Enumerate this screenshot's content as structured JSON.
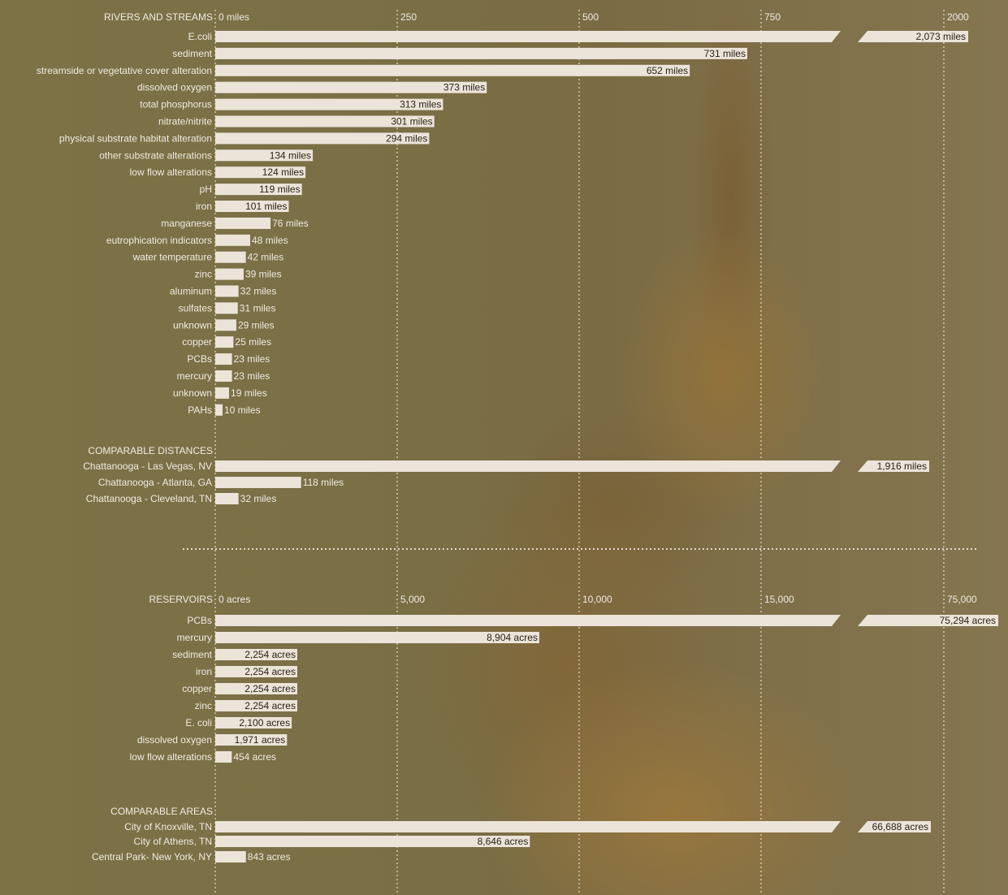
{
  "chart_data": [
    {
      "type": "bar",
      "title": "RIVERS AND STREAMS",
      "unit": "miles",
      "axis_ticks": [
        "0 miles",
        "250",
        "500",
        "750",
        "2000"
      ],
      "xlim": [
        0,
        2000
      ],
      "axis_break": [
        750,
        2000
      ],
      "categories": [
        "E.coli",
        "sediment",
        "streamside or vegetative cover alteration",
        "dissolved oxygen",
        "total phosphorus",
        "nitrate/nitrite",
        "physical substrate habitat alteration",
        "other substrate alterations",
        "low flow alterations",
        "pH",
        "iron",
        "manganese",
        "eutrophication indicators",
        "water temperature",
        "zinc",
        "aluminum",
        "sulfates",
        "unknown",
        "copper",
        "PCBs",
        "mercury",
        "unknown",
        "PAHs"
      ],
      "values": [
        2073,
        731,
        652,
        373,
        313,
        301,
        294,
        134,
        124,
        119,
        101,
        76,
        48,
        42,
        39,
        32,
        31,
        29,
        25,
        23,
        23,
        19,
        10
      ],
      "labels": [
        "2,073 miles",
        "731 miles",
        "652 miles",
        "373 miles",
        "313 miles",
        "301 miles",
        "294 miles",
        "134 miles",
        "124 miles",
        "119 miles",
        "101 miles",
        "76 miles",
        "48 miles",
        "42 miles",
        "39 miles",
        "32 miles",
        "31 miles",
        "29 miles",
        "25 miles",
        "23 miles",
        "23 miles",
        "19 miles",
        "10 miles"
      ]
    },
    {
      "type": "bar",
      "title": "COMPARABLE DISTANCES",
      "unit": "miles",
      "categories": [
        "Chattanooga - Las Vegas, NV",
        "Chattanooga - Atlanta, GA",
        "Chattanooga - Cleveland, TN"
      ],
      "values": [
        1916,
        118,
        32
      ],
      "labels": [
        "1,916 miles",
        "118 miles",
        "32 miles"
      ]
    },
    {
      "type": "bar",
      "title": "RESERVOIRS",
      "unit": "acres",
      "axis_ticks": [
        "0 acres",
        "5,000",
        "10,000",
        "15,000",
        "75,000"
      ],
      "xlim": [
        0,
        75000
      ],
      "axis_break": [
        15000,
        75000
      ],
      "categories": [
        "PCBs",
        "mercury",
        "sediment",
        "iron",
        "copper",
        "zinc",
        "E. coli",
        "dissolved oxygen",
        "low flow alterations"
      ],
      "values": [
        75294,
        8904,
        2254,
        2254,
        2254,
        2254,
        2100,
        1971,
        454
      ],
      "labels": [
        "75,294 acres",
        "8,904 acres",
        "2,254 acres",
        "2,254 acres",
        "2,254 acres",
        "2,254 acres",
        "2,100 acres",
        "1,971 acres",
        "454 acres"
      ]
    },
    {
      "type": "bar",
      "title": "COMPARABLE AREAS",
      "unit": "acres",
      "categories": [
        "City of Knoxville, TN",
        "City of Athens, TN",
        "Central Park- New York, NY"
      ],
      "values": [
        66688,
        8646,
        843
      ],
      "labels": [
        "66,688 acres",
        "8,646 acres",
        "843 acres"
      ]
    }
  ],
  "colors": {
    "bar": "#ece4d9",
    "text": "#f0ebe2",
    "label_on_bar": "#2a2214",
    "grid": "#f2ede2"
  }
}
